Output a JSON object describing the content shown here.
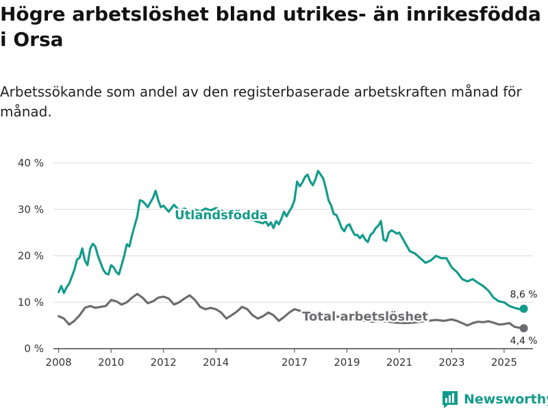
{
  "title": "Högre arbetslöshet bland utrikes- än inrikesfödda i Orsa",
  "subtitle": "Arbetssökande som andel av den registerbaserade arbetskraften månad för månad.",
  "brand": {
    "name": "Newsworthy",
    "color": "#129b8b"
  },
  "colors": {
    "foreign_born": "#129b8b",
    "total": "#6b6b70",
    "grid": "#d9d9d9"
  },
  "chart_data": {
    "type": "line",
    "title": "Högre arbetslöshet bland utrikes- än inrikesfödda i Orsa",
    "ylabel": "",
    "xlabel": "",
    "ylim": [
      0,
      40
    ],
    "xlim": [
      2007.8,
      2026.1
    ],
    "y_ticks": [
      {
        "value": 0,
        "label": "0 %"
      },
      {
        "value": 10,
        "label": "10 %"
      },
      {
        "value": 20,
        "label": "20 %"
      },
      {
        "value": 30,
        "label": "30 %"
      },
      {
        "value": 40,
        "label": "40 %"
      }
    ],
    "x_ticks": [
      {
        "value": 2008,
        "label": "2008"
      },
      {
        "value": 2010,
        "label": "2010"
      },
      {
        "value": 2012,
        "label": "2012"
      },
      {
        "value": 2014,
        "label": "2014"
      },
      {
        "value": 2017,
        "label": "2017"
      },
      {
        "value": 2019,
        "label": "2019"
      },
      {
        "value": 2021,
        "label": "2021"
      },
      {
        "value": 2023,
        "label": "2023"
      },
      {
        "value": 2025,
        "label": "2025"
      }
    ],
    "series": [
      {
        "name": "Utlandsfödda",
        "end_label": "8,6 %",
        "x": [
          2008.0,
          2008.1,
          2008.2,
          2008.3,
          2008.4,
          2008.5,
          2008.6,
          2008.7,
          2008.8,
          2008.9,
          2009.0,
          2009.1,
          2009.2,
          2009.3,
          2009.4,
          2009.5,
          2009.6,
          2009.7,
          2009.8,
          2009.9,
          2010.0,
          2010.1,
          2010.2,
          2010.3,
          2010.4,
          2010.5,
          2010.6,
          2010.7,
          2010.8,
          2010.9,
          2011.0,
          2011.1,
          2011.2,
          2011.3,
          2011.4,
          2011.5,
          2011.6,
          2011.7,
          2011.8,
          2011.9,
          2012.0,
          2012.2,
          2012.4,
          2012.6,
          2012.8,
          2013.0,
          2013.2,
          2013.4,
          2013.6,
          2013.8,
          2014.0,
          2014.3,
          2014.6,
          2014.9,
          2015.2,
          2015.5,
          2015.8,
          2015.9,
          2016.0,
          2016.1,
          2016.2,
          2016.3,
          2016.4,
          2016.5,
          2016.6,
          2016.7,
          2016.8,
          2016.9,
          2017.0,
          2017.1,
          2017.2,
          2017.3,
          2017.4,
          2017.5,
          2017.6,
          2017.7,
          2017.8,
          2017.9,
          2018.0,
          2018.1,
          2018.2,
          2018.3,
          2018.4,
          2018.5,
          2018.6,
          2018.7,
          2018.8,
          2018.9,
          2019.0,
          2019.1,
          2019.2,
          2019.3,
          2019.4,
          2019.5,
          2019.6,
          2019.7,
          2019.8,
          2019.9,
          2020.0,
          2020.1,
          2020.2,
          2020.3,
          2020.4,
          2020.5,
          2020.6,
          2020.7,
          2020.8,
          2020.9,
          2021.0,
          2021.2,
          2021.4,
          2021.6,
          2021.8,
          2022.0,
          2022.2,
          2022.4,
          2022.6,
          2022.8,
          2023.0,
          2023.2,
          2023.4,
          2023.6,
          2023.8,
          2024.0,
          2024.2,
          2024.4,
          2024.6,
          2024.8,
          2025.0,
          2025.2,
          2025.4,
          2025.6,
          2025.75
        ],
        "y": [
          12.2,
          13.5,
          12.0,
          13.2,
          14.0,
          15.5,
          17.0,
          19.2,
          19.6,
          21.6,
          19.0,
          18.0,
          21.5,
          22.6,
          22.0,
          20.0,
          18.5,
          17.0,
          16.2,
          16.0,
          18.0,
          17.5,
          16.5,
          16.0,
          18.0,
          20.0,
          22.5,
          22.0,
          24.5,
          26.5,
          28.5,
          32.0,
          31.8,
          31.2,
          30.5,
          31.5,
          32.5,
          34.0,
          32.0,
          30.5,
          30.8,
          29.5,
          31.0,
          29.8,
          30.2,
          29.5,
          30.0,
          29.5,
          30.2,
          29.8,
          30.3,
          29.5,
          29.2,
          28.8,
          28.2,
          27.5,
          27.0,
          27.5,
          26.5,
          27.2,
          26.0,
          27.5,
          26.8,
          28.0,
          29.5,
          28.5,
          29.6,
          30.5,
          32.0,
          36.0,
          35.0,
          35.8,
          37.0,
          37.5,
          36.0,
          35.2,
          36.5,
          38.3,
          37.5,
          36.6,
          34.5,
          32.0,
          30.8,
          29.0,
          28.8,
          27.5,
          26.0,
          25.3,
          26.5,
          26.8,
          25.5,
          24.5,
          24.5,
          23.8,
          24.5,
          23.5,
          23.0,
          24.5,
          25.0,
          26.0,
          26.5,
          27.5,
          23.5,
          23.2,
          25.0,
          25.5,
          25.2,
          24.8,
          25.0,
          23.0,
          21.0,
          20.5,
          19.5,
          18.5,
          19.0,
          20.0,
          19.5,
          19.5,
          17.5,
          16.5,
          15.0,
          14.5,
          15.0,
          14.2,
          13.5,
          12.5,
          11.0,
          10.2,
          10.0,
          9.2,
          8.8,
          8.5,
          8.6
        ]
      },
      {
        "name": "Total arbetslöshet",
        "end_label": "4,4 %",
        "x": [
          2008.0,
          2008.2,
          2008.4,
          2008.6,
          2008.8,
          2009.0,
          2009.2,
          2009.4,
          2009.6,
          2009.8,
          2010.0,
          2010.2,
          2010.4,
          2010.6,
          2010.8,
          2011.0,
          2011.2,
          2011.4,
          2011.6,
          2011.8,
          2012.0,
          2012.2,
          2012.4,
          2012.6,
          2012.8,
          2013.0,
          2013.2,
          2013.4,
          2013.6,
          2013.8,
          2014.0,
          2014.2,
          2014.4,
          2014.6,
          2014.8,
          2015.0,
          2015.2,
          2015.4,
          2015.6,
          2015.8,
          2016.0,
          2016.2,
          2016.4,
          2016.6,
          2016.8,
          2017.0,
          2017.3,
          2017.6,
          2017.9,
          2018.2,
          2018.5,
          2018.8,
          2019.1,
          2019.4,
          2019.7,
          2020.0,
          2020.3,
          2020.6,
          2020.9,
          2021.2,
          2021.5,
          2021.8,
          2022.1,
          2022.4,
          2022.7,
          2023.0,
          2023.2,
          2023.4,
          2023.6,
          2023.8,
          2024.0,
          2024.2,
          2024.4,
          2024.6,
          2024.8,
          2025.0,
          2025.2,
          2025.4,
          2025.6,
          2025.75
        ],
        "y": [
          7.0,
          6.5,
          5.2,
          6.0,
          7.2,
          8.8,
          9.2,
          8.8,
          9.0,
          9.2,
          10.5,
          10.2,
          9.5,
          10.0,
          11.0,
          11.8,
          11.0,
          9.8,
          10.2,
          11.0,
          11.2,
          10.8,
          9.5,
          10.0,
          10.8,
          11.5,
          10.5,
          9.0,
          8.5,
          8.8,
          8.5,
          7.8,
          6.5,
          7.2,
          8.0,
          9.0,
          8.5,
          7.2,
          6.5,
          7.0,
          7.8,
          7.2,
          6.0,
          6.8,
          7.8,
          8.5,
          8.0,
          7.8,
          7.5,
          7.2,
          7.0,
          6.8,
          6.5,
          6.2,
          6.0,
          5.8,
          6.0,
          5.8,
          5.6,
          5.5,
          5.6,
          5.8,
          6.0,
          6.2,
          6.0,
          6.3,
          6.0,
          5.5,
          5.0,
          5.5,
          5.8,
          5.7,
          5.9,
          5.6,
          5.2,
          5.3,
          5.5,
          4.7,
          4.5,
          4.4
        ]
      }
    ]
  }
}
